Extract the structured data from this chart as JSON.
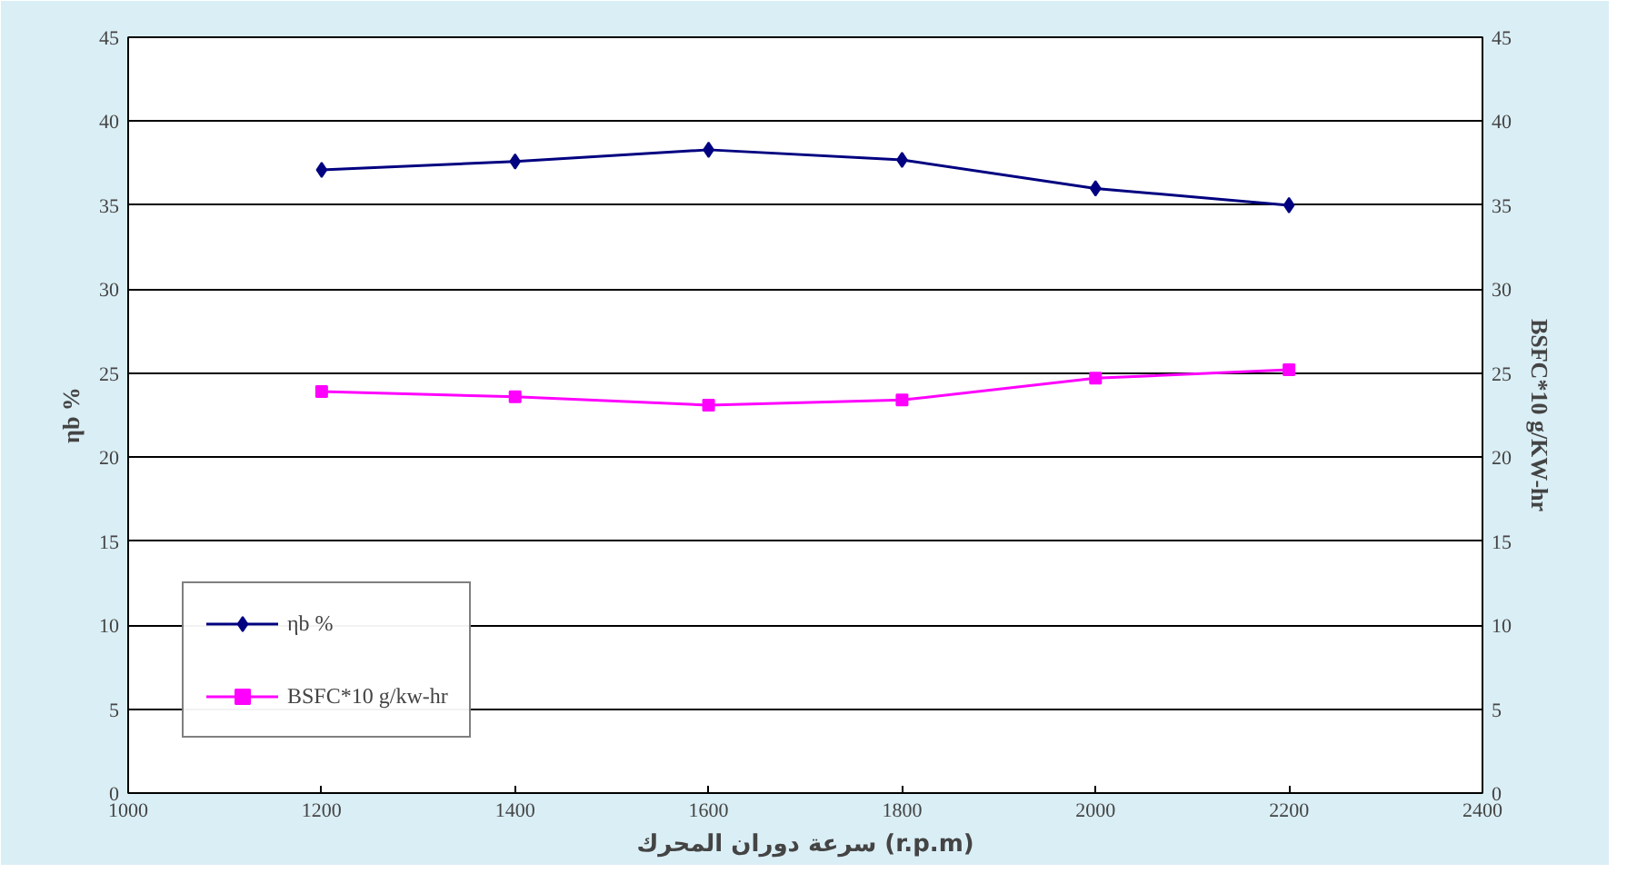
{
  "chart_data": {
    "type": "line",
    "xlabel": "سرعة دوران المحرك (r.p.m)",
    "ylabel": "ηb %",
    "y2label": "BSFC*10 g/KW-hr",
    "x": [
      1200,
      1400,
      1600,
      1800,
      2000,
      2200
    ],
    "series": [
      {
        "name": "ηb %",
        "color": "#000080",
        "marker": "diamond",
        "values": [
          37.1,
          37.6,
          38.3,
          37.7,
          36.0,
          35.0
        ]
      },
      {
        "name": "BSFC*10 g/kw-hr",
        "color": "#ff00ff",
        "marker": "square",
        "axis": "y2",
        "values": [
          23.9,
          23.6,
          23.1,
          23.4,
          24.7,
          25.2
        ]
      }
    ],
    "xlim": [
      1000,
      2400
    ],
    "xticks": [
      1000,
      1200,
      1400,
      1600,
      1800,
      2000,
      2200,
      2400
    ],
    "ylim": [
      0,
      45
    ],
    "yticks": [
      0,
      5,
      10,
      15,
      20,
      25,
      30,
      35,
      40,
      45
    ],
    "y2lim": [
      0,
      45
    ],
    "y2ticks": [
      0,
      5,
      10,
      15,
      20,
      25,
      30,
      35,
      40,
      45
    ],
    "grid": "y",
    "legend": "bottom left"
  }
}
